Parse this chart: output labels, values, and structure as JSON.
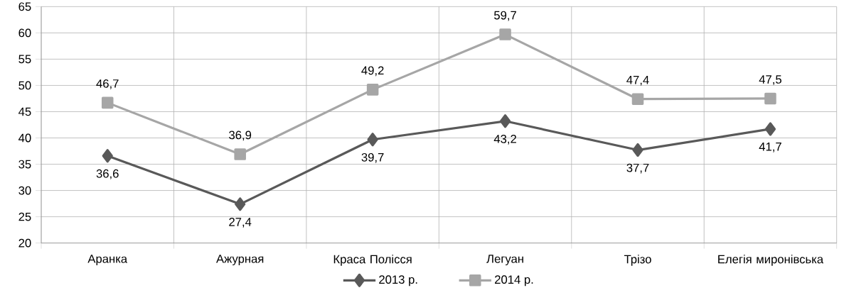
{
  "chart_data": {
    "type": "line",
    "categories": [
      "Аранка",
      "Ажурная",
      "Краса Полісся",
      "Легуан",
      "Трізо",
      "Елегія миронівська"
    ],
    "series": [
      {
        "name": "2013 р.",
        "color": "#595959",
        "marker": "diamond",
        "values": [
          36.6,
          27.4,
          39.7,
          43.2,
          37.7,
          41.7
        ],
        "value_labels": [
          "36,6",
          "27,4",
          "39,7",
          "43,2",
          "37,7",
          "41,7"
        ]
      },
      {
        "name": "2014 р.",
        "color": "#a6a6a6",
        "marker": "square",
        "values": [
          46.7,
          36.9,
          49.2,
          59.7,
          47.4,
          47.5
        ],
        "value_labels": [
          "46,7",
          "36,9",
          "49,2",
          "59,7",
          "47,4",
          "47,5"
        ]
      }
    ],
    "ylim": [
      20,
      65
    ],
    "yticks": [
      20,
      25,
      30,
      35,
      40,
      45,
      50,
      55,
      60,
      65
    ],
    "grid": true,
    "legend": "bottom",
    "line_style": "solid"
  }
}
